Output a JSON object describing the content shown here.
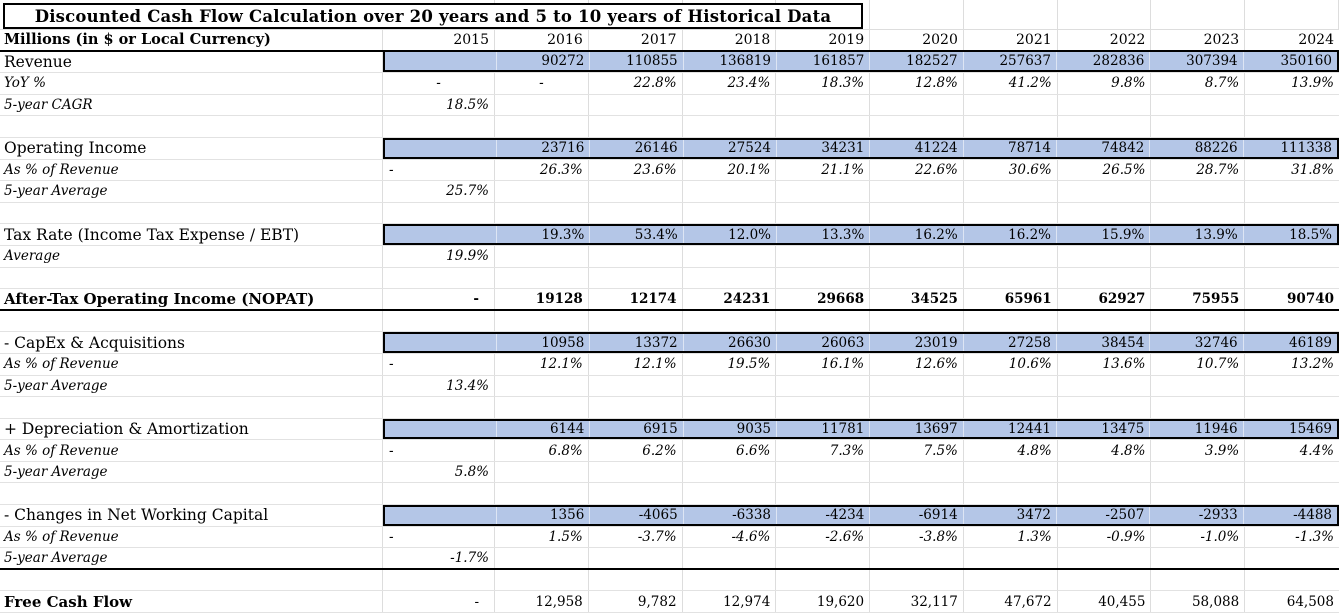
{
  "title": "Discounted Cash Flow Calculation over 20 years and 5 to 10 years of Historical Data",
  "header_label": "Millions (in $ or Local Currency)",
  "columns": [
    "2015",
    "2016",
    "2017",
    "2018",
    "2019",
    "2020",
    "2021",
    "2022",
    "2023",
    "2024"
  ],
  "colors": {
    "band_fill": "#B4C6E7",
    "gridline": "#DDDDDD",
    "border": "#000000",
    "text": "#000000"
  },
  "rows": [
    {
      "t": "hdr",
      "label": "Millions (in $ or Local Currency)"
    },
    {
      "t": "band",
      "label": "Revenue",
      "values": [
        "",
        "90272",
        "110855",
        "136819",
        "161857",
        "182527",
        "257637",
        "282836",
        "307394",
        "350160"
      ]
    },
    {
      "t": "it",
      "label": "YoY %",
      "values": [
        "-",
        "-",
        "22.8%",
        "23.4%",
        "18.3%",
        "12.8%",
        "41.2%",
        "9.8%",
        "8.7%",
        "13.9%"
      ]
    },
    {
      "t": "it",
      "label": "5-year CAGR",
      "values": [
        "18.5%",
        "",
        "",
        "",
        "",
        "",
        "",
        "",
        "",
        ""
      ]
    },
    {
      "t": "sp"
    },
    {
      "t": "band",
      "label": "Operating Income",
      "values": [
        "",
        "23716",
        "26146",
        "27524",
        "34231",
        "41224",
        "78714",
        "74842",
        "88226",
        "111338"
      ]
    },
    {
      "t": "pct",
      "label": "As % of Revenue",
      "values": [
        "-",
        "26.3%",
        "23.6%",
        "20.1%",
        "21.1%",
        "22.6%",
        "30.6%",
        "26.5%",
        "28.7%",
        "31.8%"
      ]
    },
    {
      "t": "it",
      "label": "5-year Average",
      "values": [
        "25.7%",
        "",
        "",
        "",
        "",
        "",
        "",
        "",
        "",
        ""
      ]
    },
    {
      "t": "sp"
    },
    {
      "t": "band",
      "label": "Tax Rate (Income Tax Expense / EBT)",
      "values": [
        "",
        "19.3%",
        "53.4%",
        "12.0%",
        "13.3%",
        "16.2%",
        "16.2%",
        "15.9%",
        "13.9%",
        "18.5%"
      ]
    },
    {
      "t": "it",
      "label": "Average",
      "values": [
        "19.9%",
        "",
        "",
        "",
        "",
        "",
        "",
        "",
        "",
        ""
      ]
    },
    {
      "t": "sp"
    },
    {
      "t": "tot",
      "label": "After-Tax Operating Income (NOPAT)",
      "values": [
        "-",
        "19128",
        "12174",
        "24231",
        "29668",
        "34525",
        "65961",
        "62927",
        "75955",
        "90740"
      ]
    },
    {
      "t": "sp"
    },
    {
      "t": "band",
      "label": "- CapEx & Acquisitions",
      "values": [
        "",
        "10958",
        "13372",
        "26630",
        "26063",
        "23019",
        "27258",
        "38454",
        "32746",
        "46189"
      ]
    },
    {
      "t": "pct",
      "label": "As % of Revenue",
      "values": [
        "-",
        "12.1%",
        "12.1%",
        "19.5%",
        "16.1%",
        "12.6%",
        "10.6%",
        "13.6%",
        "10.7%",
        "13.2%"
      ]
    },
    {
      "t": "it",
      "label": "5-year Average",
      "values": [
        "13.4%",
        "",
        "",
        "",
        "",
        "",
        "",
        "",
        "",
        ""
      ]
    },
    {
      "t": "sp"
    },
    {
      "t": "band",
      "label": "+ Depreciation & Amortization",
      "values": [
        "",
        "6144",
        "6915",
        "9035",
        "11781",
        "13697",
        "12441",
        "13475",
        "11946",
        "15469"
      ]
    },
    {
      "t": "pct",
      "label": "As % of Revenue",
      "values": [
        "-",
        "6.8%",
        "6.2%",
        "6.6%",
        "7.3%",
        "7.5%",
        "4.8%",
        "4.8%",
        "3.9%",
        "4.4%"
      ]
    },
    {
      "t": "it",
      "label": "5-year Average",
      "values": [
        "5.8%",
        "",
        "",
        "",
        "",
        "",
        "",
        "",
        "",
        ""
      ]
    },
    {
      "t": "sp"
    },
    {
      "t": "band",
      "label": "- Changes in Net Working Capital",
      "values": [
        "",
        "1356",
        "-4065",
        "-6338",
        "-4234",
        "-6914",
        "3472",
        "-2507",
        "-2933",
        "-4488"
      ]
    },
    {
      "t": "pct",
      "label": "As % of Revenue",
      "values": [
        "-",
        "1.5%",
        "-3.7%",
        "-4.6%",
        "-2.6%",
        "-3.8%",
        "1.3%",
        "-0.9%",
        "-1.0%",
        "-1.3%"
      ]
    },
    {
      "t": "it",
      "label": "5-year Average",
      "bb": true,
      "values": [
        "-1.7%",
        "",
        "",
        "",
        "",
        "",
        "",
        "",
        "",
        ""
      ]
    },
    {
      "t": "sp"
    },
    {
      "t": "fcf",
      "label": "Free Cash Flow",
      "values": [
        "-",
        "12,958",
        "9,782",
        "12,974",
        "19,620",
        "32,117",
        "47,672",
        "40,455",
        "58,088",
        "64,508"
      ]
    }
  ]
}
